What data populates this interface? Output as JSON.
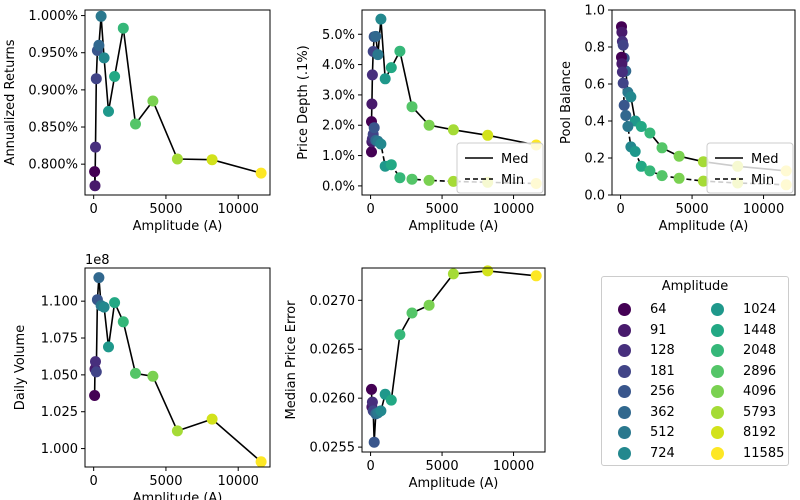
{
  "chart_data": [
    {
      "type": "scatter",
      "title": "",
      "xlabel": "Amplitude (A)",
      "ylabel": "Annualized Returns",
      "xlim": [
        -600,
        12200
      ],
      "ylim": [
        0.7585,
        1.0075
      ],
      "xticks": [
        0,
        5000,
        10000
      ],
      "xtick_labels": [
        "0",
        "5000",
        "10000"
      ],
      "yticks": [
        0.8,
        0.85,
        0.9,
        0.95,
        1.0
      ],
      "ytick_labels": [
        "0.800%",
        "0.850%",
        "0.900%",
        "0.950%",
        "1.000%"
      ],
      "grid": false,
      "x": [
        64,
        91,
        128,
        181,
        256,
        362,
        512,
        724,
        1024,
        1448,
        2048,
        2896,
        4096,
        5793,
        8192,
        11585
      ],
      "series": [
        {
          "name": "Returns",
          "style": "solid",
          "values": [
            0.79,
            0.771,
            0.823,
            0.915,
            0.953,
            0.96,
            0.999,
            0.943,
            0.871,
            0.918,
            0.983,
            0.854,
            0.885,
            0.807,
            0.806,
            0.788
          ]
        }
      ]
    },
    {
      "type": "scatter",
      "title": "",
      "xlabel": "Amplitude (A)",
      "ylabel": "Price Depth (.1%)",
      "xlim": [
        -600,
        12200
      ],
      "ylim": [
        -0.3,
        5.8
      ],
      "xticks": [
        0,
        5000,
        10000
      ],
      "xtick_labels": [
        "0",
        "5000",
        "10000"
      ],
      "yticks": [
        0,
        1,
        2,
        3,
        4,
        5
      ],
      "ytick_labels": [
        "0.0%",
        "1.0%",
        "2.0%",
        "3.0%",
        "4.0%",
        "5.0%"
      ],
      "grid": false,
      "legend": {
        "placement": "lower-right",
        "entries": [
          "Med",
          "Min"
        ]
      },
      "x": [
        64,
        91,
        128,
        181,
        256,
        362,
        512,
        724,
        1024,
        1448,
        2048,
        2896,
        4096,
        5793,
        8192,
        11585
      ],
      "series": [
        {
          "name": "Med",
          "style": "solid",
          "values": [
            2.12,
            2.7,
            3.66,
            4.43,
            4.92,
            4.93,
            4.33,
            5.5,
            3.53,
            3.9,
            4.44,
            2.61,
            2.0,
            1.85,
            1.67,
            1.35
          ]
        },
        {
          "name": "Min",
          "style": "dashed",
          "values": [
            1.12,
            1.45,
            1.55,
            1.7,
            1.92,
            1.5,
            1.47,
            1.38,
            0.65,
            0.7,
            0.27,
            0.22,
            0.18,
            0.15,
            0.12,
            0.08
          ]
        }
      ]
    },
    {
      "type": "scatter",
      "title": "",
      "xlabel": "Amplitude (A)",
      "ylabel": "Pool Balance",
      "xlim": [
        -600,
        12200
      ],
      "ylim": [
        0.0,
        1.0
      ],
      "xticks": [
        0,
        5000,
        10000
      ],
      "xtick_labels": [
        "0",
        "5000",
        "10000"
      ],
      "yticks": [
        0.0,
        0.2,
        0.4,
        0.6,
        0.8,
        1.0
      ],
      "ytick_labels": [
        "0.0",
        "0.2",
        "0.4",
        "0.6",
        "0.8",
        "1.0"
      ],
      "grid": false,
      "legend": {
        "placement": "lower-right",
        "entries": [
          "Med",
          "Min"
        ]
      },
      "x": [
        64,
        91,
        128,
        181,
        256,
        362,
        512,
        724,
        1024,
        1448,
        2048,
        2896,
        4096,
        5793,
        8192,
        11585
      ],
      "series": [
        {
          "name": "Med",
          "style": "solid",
          "values": [
            0.91,
            0.88,
            0.83,
            0.81,
            0.74,
            0.67,
            0.555,
            0.53,
            0.4,
            0.37,
            0.335,
            0.255,
            0.21,
            0.18,
            0.155,
            0.13
          ]
        },
        {
          "name": "Min",
          "style": "dashed",
          "values": [
            0.745,
            0.71,
            0.665,
            0.605,
            0.485,
            0.43,
            0.37,
            0.26,
            0.235,
            0.155,
            0.13,
            0.105,
            0.09,
            0.075,
            0.065,
            0.055
          ]
        }
      ]
    },
    {
      "type": "scatter",
      "title": "",
      "xlabel": "Amplitude (A)",
      "ylabel": "Daily Volume",
      "offset_label": "1e8",
      "xlim": [
        -600,
        12200
      ],
      "ylim": [
        0.9875,
        1.1225
      ],
      "xticks": [
        0,
        5000,
        10000
      ],
      "xtick_labels": [
        "0",
        "5000",
        "10000"
      ],
      "yticks": [
        1.0,
        1.025,
        1.05,
        1.075,
        1.1
      ],
      "ytick_labels": [
        "1.000",
        "1.025",
        "1.050",
        "1.075",
        "1.100"
      ],
      "grid": false,
      "x": [
        64,
        91,
        128,
        181,
        256,
        362,
        512,
        724,
        1024,
        1448,
        2048,
        2896,
        4096,
        5793,
        8192,
        11585
      ],
      "series": [
        {
          "name": "Volume",
          "style": "solid",
          "values": [
            1.036,
            1.054,
            1.059,
            1.052,
            1.101,
            1.116,
            1.097,
            1.096,
            1.069,
            1.099,
            1.086,
            1.051,
            1.049,
            1.012,
            1.02,
            0.991
          ]
        }
      ]
    },
    {
      "type": "scatter",
      "title": "",
      "xlabel": "Amplitude (A)",
      "ylabel": "Median Price Error",
      "xlim": [
        -600,
        12200
      ],
      "ylim": [
        0.02545,
        0.02733
      ],
      "xticks": [
        0,
        5000,
        10000
      ],
      "xtick_labels": [
        "0",
        "5000",
        "10000"
      ],
      "yticks": [
        0.0255,
        0.026,
        0.0265,
        0.027
      ],
      "ytick_labels": [
        "0.0255",
        "0.0260",
        "0.0265",
        "0.0270"
      ],
      "grid": false,
      "x": [
        64,
        91,
        128,
        181,
        256,
        362,
        512,
        724,
        1024,
        1448,
        2048,
        2896,
        4096,
        5793,
        8192,
        11585
      ],
      "series": [
        {
          "name": "Error",
          "style": "solid",
          "values": [
            0.02609,
            0.02591,
            0.02596,
            0.02587,
            0.02555,
            0.02584,
            0.02585,
            0.02587,
            0.02604,
            0.02598,
            0.02665,
            0.02687,
            0.02695,
            0.02727,
            0.0273,
            0.02725
          ]
        }
      ]
    }
  ],
  "legend": {
    "title": "Amplitude",
    "entries": [
      "64",
      "91",
      "128",
      "181",
      "256",
      "362",
      "512",
      "724",
      "1024",
      "1448",
      "2048",
      "2896",
      "4096",
      "5793",
      "8192",
      "11585"
    ],
    "colors": [
      "#440154",
      "#481a6c",
      "#472f7d",
      "#414487",
      "#39568c",
      "#31688e",
      "#2a788e",
      "#23888e",
      "#1f988b",
      "#22a884",
      "#35b779",
      "#54c568",
      "#7ad151",
      "#a5db36",
      "#d2e21b",
      "#fde725"
    ]
  },
  "subplot_legend_labels": {
    "med": "Med",
    "min": "Min"
  }
}
